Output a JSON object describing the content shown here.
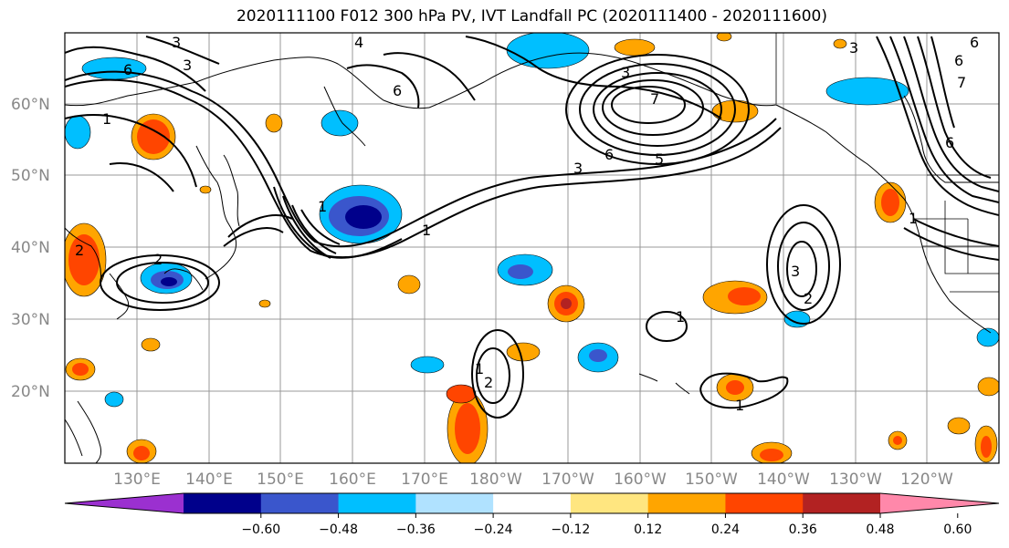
{
  "title": "2020111100 F012 300 hPa PV, IVT Landfall PC (2020111400 - 2020111600)",
  "lat_labels": [
    "60°N",
    "50°N",
    "40°N",
    "30°N",
    "20°N"
  ],
  "lon_labels": [
    "130°E",
    "140°E",
    "150°E",
    "160°E",
    "170°E",
    "180°W",
    "170°W",
    "160°W",
    "150°W",
    "140°W",
    "130°W",
    "120°W"
  ],
  "colorbar": {
    "ticks": [
      "−0.60",
      "−0.48",
      "−0.36",
      "−0.24",
      "−0.12",
      "0.12",
      "0.24",
      "0.36",
      "0.48",
      "0.60"
    ],
    "colors": [
      "#9b30d0",
      "#00008b",
      "#3a56cc",
      "#00bfff",
      "#b0e2ff",
      "#ffffff",
      "#ffe680",
      "#ffa500",
      "#ff4500",
      "#b22222",
      "#ff88aa"
    ]
  },
  "contour_labels": [
    "1",
    "2",
    "3",
    "4",
    "5",
    "6",
    "7"
  ],
  "colors": {
    "pv_contour": "#000000",
    "gridline": "#999999",
    "label": "#888888"
  }
}
